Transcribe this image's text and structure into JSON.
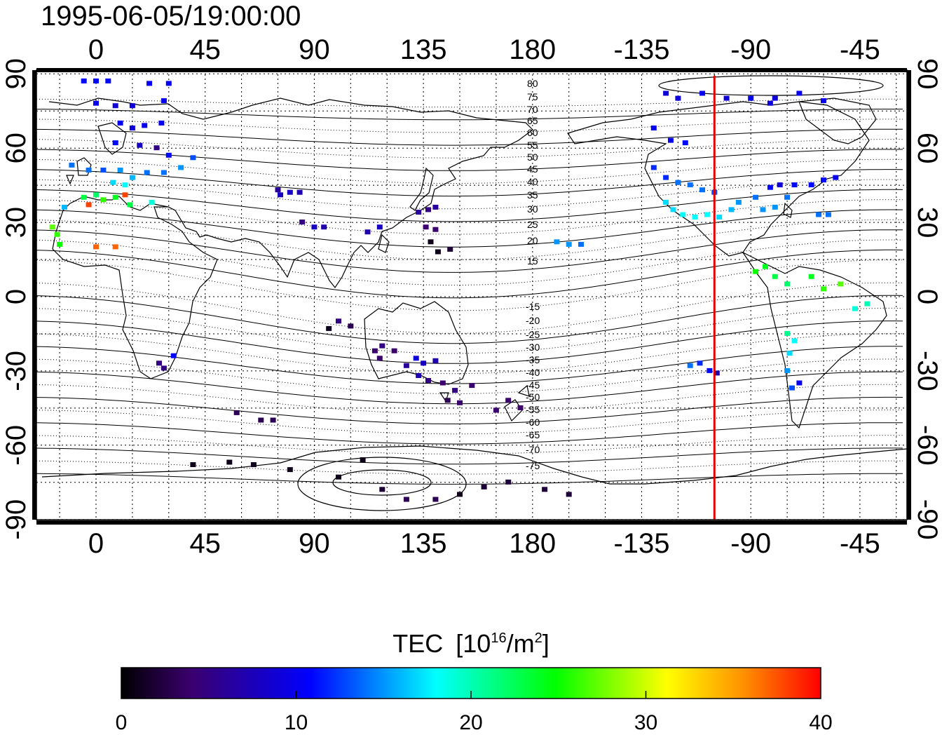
{
  "timestamp": "1995-06-05/19:00:00",
  "map": {
    "lon_ticks": [
      "0",
      "45",
      "90",
      "135",
      "180",
      "-135",
      "-90",
      "-45"
    ],
    "lat_ticks_left": [
      "90",
      "60",
      "30",
      "0",
      "-30",
      "-60",
      "-90"
    ],
    "lat_ticks_right": [
      "90",
      "60",
      "30",
      "0",
      "-30",
      "-60",
      "-90"
    ],
    "meridian_line_color": "#e00000",
    "meridian_longitude": -105
  },
  "magnetic_lat_labels": {
    "north": [
      "80",
      "75",
      "70",
      "65",
      "60",
      "55",
      "50",
      "45",
      "40",
      "35",
      "30",
      "25",
      "20",
      "15"
    ],
    "south": [
      "-15",
      "-20",
      "-25",
      "-30",
      "-35",
      "-40",
      "-45",
      "-50",
      "-55",
      "-60",
      "-65",
      "-70",
      "-75"
    ]
  },
  "colorbar": {
    "title": "TEC",
    "unit_prefix": "[10",
    "unit_exp": "16",
    "unit_mid": "/m",
    "unit_exp2": "2",
    "unit_suffix": "]",
    "ticks": [
      "0",
      "10",
      "20",
      "30",
      "40"
    ],
    "stops": [
      "#000000",
      "#3a006e",
      "#0000ff",
      "#00ffff",
      "#00ff00",
      "#ffff00",
      "#ff0000"
    ]
  },
  "chart_data": {
    "type": "scatter",
    "title": "1995-06-05/19:00:00",
    "xlabel": "",
    "ylabel": "",
    "xlim": [
      -20,
      330
    ],
    "ylim": [
      -90,
      90
    ],
    "value_range": [
      0,
      40
    ],
    "points": [
      {
        "lon": -5,
        "lat": 87,
        "tec": 11
      },
      {
        "lon": 0,
        "lat": 87,
        "tec": 11
      },
      {
        "lon": 5,
        "lat": 87,
        "tec": 11
      },
      {
        "lon": 22,
        "lat": 86,
        "tec": 10
      },
      {
        "lon": 30,
        "lat": 86,
        "tec": 10
      },
      {
        "lon": 0,
        "lat": 78,
        "tec": 10
      },
      {
        "lon": 8,
        "lat": 77,
        "tec": 9
      },
      {
        "lon": 15,
        "lat": 77,
        "tec": 9
      },
      {
        "lon": 28,
        "lat": 79,
        "tec": 10
      },
      {
        "lon": 10,
        "lat": 70,
        "tec": 10
      },
      {
        "lon": 15,
        "lat": 68,
        "tec": 9
      },
      {
        "lon": 20,
        "lat": 69,
        "tec": 10
      },
      {
        "lon": 27,
        "lat": 70,
        "tec": 10
      },
      {
        "lon": 8,
        "lat": 62,
        "tec": 11
      },
      {
        "lon": 18,
        "lat": 61,
        "tec": 8
      },
      {
        "lon": 25,
        "lat": 60,
        "tec": 5
      },
      {
        "lon": 30,
        "lat": 57,
        "tec": 11
      },
      {
        "lon": 40,
        "lat": 56,
        "tec": 13
      },
      {
        "lon": -10,
        "lat": 53,
        "tec": 14
      },
      {
        "lon": -3,
        "lat": 51,
        "tec": 14
      },
      {
        "lon": 3,
        "lat": 51,
        "tec": 13
      },
      {
        "lon": 10,
        "lat": 51,
        "tec": 15
      },
      {
        "lon": 15,
        "lat": 48,
        "tec": 16
      },
      {
        "lon": 21,
        "lat": 50,
        "tec": 14
      },
      {
        "lon": 28,
        "lat": 50,
        "tec": 14
      },
      {
        "lon": 35,
        "lat": 52,
        "tec": 15
      },
      {
        "lon": 7,
        "lat": 46,
        "tec": 17
      },
      {
        "lon": 12,
        "lat": 45,
        "tec": 18
      },
      {
        "lon": -5,
        "lat": 40,
        "tec": 23
      },
      {
        "lon": 0,
        "lat": 41,
        "tec": 22
      },
      {
        "lon": -3,
        "lat": 37,
        "tec": 38
      },
      {
        "lon": 3,
        "lat": 39,
        "tec": 26
      },
      {
        "lon": 8,
        "lat": 40,
        "tec": 24
      },
      {
        "lon": 12,
        "lat": 41,
        "tec": 38
      },
      {
        "lon": 14,
        "lat": 37,
        "tec": 23
      },
      {
        "lon": 23,
        "lat": 38,
        "tec": 19
      },
      {
        "lon": -13,
        "lat": 36,
        "tec": 16
      },
      {
        "lon": -18,
        "lat": 28,
        "tec": 27
      },
      {
        "lon": -16,
        "lat": 25,
        "tec": 26
      },
      {
        "lon": -15,
        "lat": 21,
        "tec": 25
      },
      {
        "lon": 0,
        "lat": 20,
        "tec": 37
      },
      {
        "lon": 8,
        "lat": 20,
        "tec": 37
      },
      {
        "lon": 32,
        "lat": -24,
        "tec": 11
      },
      {
        "lon": 26,
        "lat": -27,
        "tec": 5
      },
      {
        "lon": 28,
        "lat": -29,
        "tec": 5
      },
      {
        "lon": 75,
        "lat": 43,
        "tec": 6
      },
      {
        "lon": 76,
        "lat": 41,
        "tec": 8
      },
      {
        "lon": 80,
        "lat": 42,
        "tec": 8
      },
      {
        "lon": 84,
        "lat": 42,
        "tec": 7
      },
      {
        "lon": 85,
        "lat": 30,
        "tec": 5
      },
      {
        "lon": 90,
        "lat": 28,
        "tec": 8
      },
      {
        "lon": 94,
        "lat": 28,
        "tec": 7
      },
      {
        "lon": 100,
        "lat": -10,
        "tec": 5
      },
      {
        "lon": 105,
        "lat": -12,
        "tec": 3
      },
      {
        "lon": 96,
        "lat": -13,
        "tec": 1
      },
      {
        "lon": 112,
        "lat": 26,
        "tec": 7
      },
      {
        "lon": 117,
        "lat": 28,
        "tec": 8
      },
      {
        "lon": 133,
        "lat": 34,
        "tec": 6
      },
      {
        "lon": 137,
        "lat": 35,
        "tec": 5
      },
      {
        "lon": 140,
        "lat": 36,
        "tec": 6
      },
      {
        "lon": 136,
        "lat": 28,
        "tec": 4
      },
      {
        "lon": 140,
        "lat": 27,
        "tec": 4
      },
      {
        "lon": 138,
        "lat": 22,
        "tec": 1
      },
      {
        "lon": 141,
        "lat": 18,
        "tec": 1
      },
      {
        "lon": 146,
        "lat": 19,
        "tec": 2
      },
      {
        "lon": 115,
        "lat": -22,
        "tec": 4
      },
      {
        "lon": 118,
        "lat": -20,
        "tec": 5
      },
      {
        "lon": 123,
        "lat": -22,
        "tec": 4
      },
      {
        "lon": 117,
        "lat": -25,
        "tec": 4
      },
      {
        "lon": 132,
        "lat": -25,
        "tec": 9
      },
      {
        "lon": 135,
        "lat": -27,
        "tec": 8
      },
      {
        "lon": 128,
        "lat": -28,
        "tec": 6
      },
      {
        "lon": 140,
        "lat": -26,
        "tec": 7
      },
      {
        "lon": 133,
        "lat": -32,
        "tec": 7
      },
      {
        "lon": 137,
        "lat": -34,
        "tec": 5
      },
      {
        "lon": 143,
        "lat": -35,
        "tec": 4
      },
      {
        "lon": 148,
        "lat": -38,
        "tec": 5
      },
      {
        "lon": 145,
        "lat": -42,
        "tec": 3
      },
      {
        "lon": 150,
        "lat": -43,
        "tec": 4
      },
      {
        "lon": 155,
        "lat": -36,
        "tec": 4
      },
      {
        "lon": 170,
        "lat": -42,
        "tec": 4
      },
      {
        "lon": 175,
        "lat": -45,
        "tec": 4
      },
      {
        "lon": 165,
        "lat": -46,
        "tec": 4
      },
      {
        "lon": 58,
        "lat": -47,
        "tec": 3
      },
      {
        "lon": 68,
        "lat": -50,
        "tec": 3
      },
      {
        "lon": 73,
        "lat": -50,
        "tec": 3
      },
      {
        "lon": 40,
        "lat": -68,
        "tec": 1
      },
      {
        "lon": 55,
        "lat": -67,
        "tec": 1
      },
      {
        "lon": 65,
        "lat": -68,
        "tec": 1
      },
      {
        "lon": 80,
        "lat": -70,
        "tec": 1
      },
      {
        "lon": 100,
        "lat": -73,
        "tec": 1
      },
      {
        "lon": 110,
        "lat": -66,
        "tec": 1
      },
      {
        "lon": 118,
        "lat": -78,
        "tec": 2
      },
      {
        "lon": 128,
        "lat": -82,
        "tec": 3
      },
      {
        "lon": 140,
        "lat": -82,
        "tec": 3
      },
      {
        "lon": 150,
        "lat": -80,
        "tec": 1
      },
      {
        "lon": 160,
        "lat": -77,
        "tec": 2
      },
      {
        "lon": 170,
        "lat": -75,
        "tec": 2
      },
      {
        "lon": 185,
        "lat": -78,
        "tec": 2
      },
      {
        "lon": 195,
        "lat": -80,
        "tec": 2
      },
      {
        "lon": 190,
        "lat": 22,
        "tec": 15
      },
      {
        "lon": 195,
        "lat": 21,
        "tec": 15
      },
      {
        "lon": 200,
        "lat": 21,
        "tec": 14
      },
      {
        "lon": 235,
        "lat": 82,
        "tec": 9
      },
      {
        "lon": 240,
        "lat": 80,
        "tec": 9
      },
      {
        "lon": 250,
        "lat": 82,
        "tec": 10
      },
      {
        "lon": 260,
        "lat": 80,
        "tec": 9
      },
      {
        "lon": 270,
        "lat": 80,
        "tec": 10
      },
      {
        "lon": 278,
        "lat": 78,
        "tec": 9
      },
      {
        "lon": 280,
        "lat": 80,
        "tec": 9
      },
      {
        "lon": 290,
        "lat": 82,
        "tec": 10
      },
      {
        "lon": 300,
        "lat": 79,
        "tec": 10
      },
      {
        "lon": 230,
        "lat": 68,
        "tec": 10
      },
      {
        "lon": 237,
        "lat": 63,
        "tec": 10
      },
      {
        "lon": 243,
        "lat": 62,
        "tec": 11
      },
      {
        "lon": 230,
        "lat": 52,
        "tec": 12
      },
      {
        "lon": 235,
        "lat": 48,
        "tec": 12
      },
      {
        "lon": 240,
        "lat": 46,
        "tec": 14
      },
      {
        "lon": 245,
        "lat": 45,
        "tec": 14
      },
      {
        "lon": 250,
        "lat": 43,
        "tec": 14
      },
      {
        "lon": 255,
        "lat": 42,
        "tec": 13
      },
      {
        "lon": 235,
        "lat": 38,
        "tec": 17
      },
      {
        "lon": 238,
        "lat": 35,
        "tec": 17
      },
      {
        "lon": 242,
        "lat": 33,
        "tec": 18
      },
      {
        "lon": 247,
        "lat": 32,
        "tec": 18
      },
      {
        "lon": 252,
        "lat": 33,
        "tec": 18
      },
      {
        "lon": 257,
        "lat": 32,
        "tec": 17
      },
      {
        "lon": 262,
        "lat": 35,
        "tec": 16
      },
      {
        "lon": 265,
        "lat": 38,
        "tec": 15
      },
      {
        "lon": 272,
        "lat": 40,
        "tec": 14
      },
      {
        "lon": 275,
        "lat": 35,
        "tec": 15
      },
      {
        "lon": 280,
        "lat": 36,
        "tec": 15
      },
      {
        "lon": 285,
        "lat": 40,
        "tec": 14
      },
      {
        "lon": 278,
        "lat": 44,
        "tec": 11
      },
      {
        "lon": 282,
        "lat": 45,
        "tec": 9
      },
      {
        "lon": 288,
        "lat": 45,
        "tec": 11
      },
      {
        "lon": 295,
        "lat": 45,
        "tec": 11
      },
      {
        "lon": 300,
        "lat": 47,
        "tec": 11
      },
      {
        "lon": 305,
        "lat": 48,
        "tec": 10
      },
      {
        "lon": 298,
        "lat": 33,
        "tec": 14
      },
      {
        "lon": 302,
        "lat": 33,
        "tec": 14
      },
      {
        "lon": 272,
        "lat": 10,
        "tec": 25
      },
      {
        "lon": 276,
        "lat": 12,
        "tec": 24
      },
      {
        "lon": 280,
        "lat": 8,
        "tec": 23
      },
      {
        "lon": 285,
        "lat": 5,
        "tec": 22
      },
      {
        "lon": 295,
        "lat": 8,
        "tec": 24
      },
      {
        "lon": 300,
        "lat": 3,
        "tec": 26
      },
      {
        "lon": 307,
        "lat": 5,
        "tec": 27
      },
      {
        "lon": 313,
        "lat": -5,
        "tec": 19
      },
      {
        "lon": 318,
        "lat": -3,
        "tec": 20
      },
      {
        "lon": 285,
        "lat": -15,
        "tec": 21
      },
      {
        "lon": 288,
        "lat": -18,
        "tec": 18
      },
      {
        "lon": 286,
        "lat": -23,
        "tec": 17
      },
      {
        "lon": 285,
        "lat": -30,
        "tec": 15
      },
      {
        "lon": 287,
        "lat": -37,
        "tec": 13
      },
      {
        "lon": 290,
        "lat": -35,
        "tec": 10
      },
      {
        "lon": 245,
        "lat": -28,
        "tec": 14
      },
      {
        "lon": 249,
        "lat": -27,
        "tec": 12
      },
      {
        "lon": 253,
        "lat": -30,
        "tec": 11
      },
      {
        "lon": 256,
        "lat": -31,
        "tec": 7
      }
    ]
  }
}
